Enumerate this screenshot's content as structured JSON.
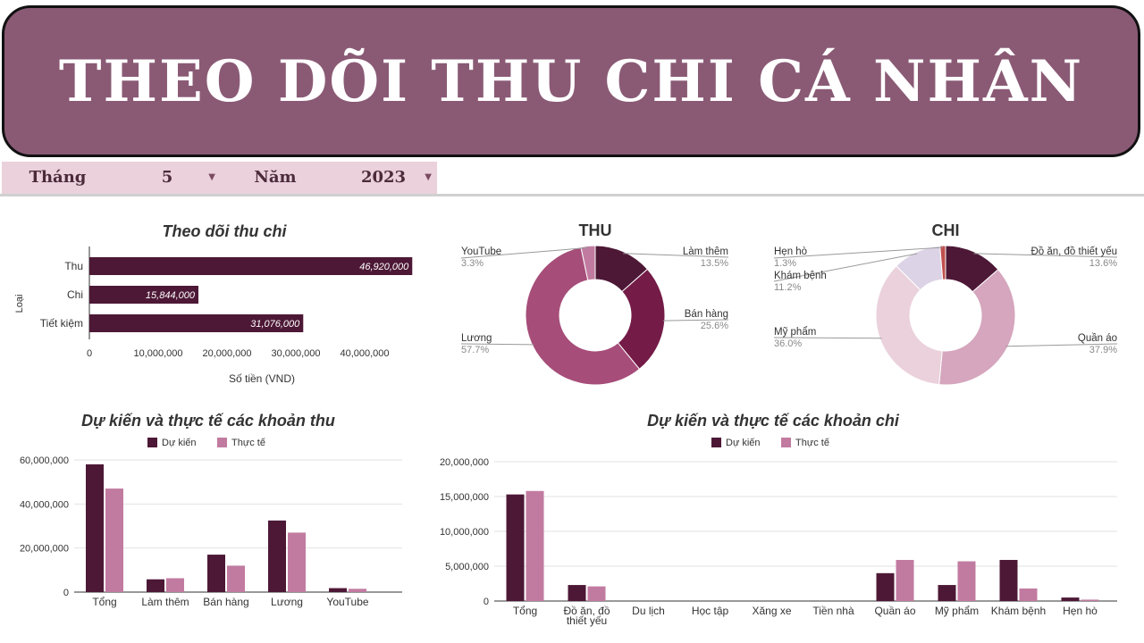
{
  "banner": {
    "title": "THEO DÕI THU CHI CÁ NHÂN"
  },
  "filters": {
    "month_label": "Tháng",
    "month_value": "5",
    "year_label": "Năm",
    "year_value": "2023"
  },
  "colors": {
    "dark": "#4d1836",
    "mid": "#a64d79",
    "light": "#c27ba0",
    "banner": "#8a5a75"
  },
  "chart_data": [
    {
      "type": "bar",
      "orientation": "horizontal",
      "title": "Theo dõi thu chi",
      "xlabel": "Số tiền (VND)",
      "ylabel": "Loại",
      "categories": [
        "Thu",
        "Chi",
        "Tiết kiệm"
      ],
      "values": [
        46920000,
        15844000,
        31076000
      ],
      "data_labels": [
        "46,920,000",
        "15,844,000",
        "31,076,000"
      ],
      "xlim": [
        0,
        40000000
      ],
      "xticks": [
        "0",
        "10,000,000",
        "20,000,000",
        "30,000,000",
        "40,000,000"
      ]
    },
    {
      "type": "pie",
      "donut": true,
      "title": "THU",
      "slices": [
        {
          "label": "Làm thêm",
          "pct": "13.5%",
          "value": 13.5,
          "color": "#4d1836"
        },
        {
          "label": "Bán hàng",
          "pct": "25.6%",
          "value": 25.6,
          "color": "#741b47"
        },
        {
          "label": "Lương",
          "pct": "57.7%",
          "value": 57.7,
          "color": "#a64d79"
        },
        {
          "label": "YouTube",
          "pct": "3.3%",
          "value": 3.3,
          "color": "#c27ba0"
        }
      ]
    },
    {
      "type": "pie",
      "donut": true,
      "title": "CHI",
      "slices": [
        {
          "label": "Đồ ăn, đồ thiết yếu",
          "pct": "13.6%",
          "value": 13.6,
          "color": "#4d1836"
        },
        {
          "label": "Quần áo",
          "pct": "37.9%",
          "value": 37.9,
          "color": "#d5a6bd"
        },
        {
          "label": "Mỹ phẩm",
          "pct": "36.0%",
          "value": 36.0,
          "color": "#ead1dc"
        },
        {
          "label": "Khám bệnh",
          "pct": "11.2%",
          "value": 11.2,
          "color": "#dcd3e6"
        },
        {
          "label": "Hẹn hò",
          "pct": "1.3%",
          "value": 1.3,
          "color": "#c0504d"
        }
      ]
    },
    {
      "type": "bar",
      "title": "Dự kiến và thực tế các khoản thu",
      "categories": [
        "Tổng",
        "Làm thêm",
        "Bán hàng",
        "Lương",
        "YouTube"
      ],
      "series": [
        {
          "name": "Dự kiến",
          "values": [
            58000000,
            5800000,
            17000000,
            32500000,
            1800000
          ]
        },
        {
          "name": "Thực tế",
          "values": [
            47000000,
            6300000,
            12000000,
            27000000,
            1500000
          ]
        }
      ],
      "ylim": [
        0,
        60000000
      ],
      "yticks": [
        "0",
        "20,000,000",
        "40,000,000",
        "60,000,000"
      ],
      "legend": "top"
    },
    {
      "type": "bar",
      "title": "Dự kiến và thực tế các khoản chi",
      "categories": [
        "Tổng",
        "Đồ ăn, đồ thiết yếu",
        "Du lịch",
        "Học tập",
        "Xăng xe",
        "Tiền nhà",
        "Quần áo",
        "Mỹ phẩm",
        "Khám bệnh",
        "Hẹn hò"
      ],
      "series": [
        {
          "name": "Dự kiến",
          "values": [
            15300000,
            2300000,
            0,
            0,
            0,
            0,
            4000000,
            2300000,
            5900000,
            500000
          ]
        },
        {
          "name": "Thực tế",
          "values": [
            15800000,
            2100000,
            0,
            0,
            0,
            0,
            5900000,
            5700000,
            1800000,
            200000
          ]
        }
      ],
      "ylim": [
        0,
        20000000
      ],
      "yticks": [
        "0",
        "5,000,000",
        "10,000,000",
        "15,000,000",
        "20,000,000"
      ],
      "legend": "top"
    }
  ]
}
